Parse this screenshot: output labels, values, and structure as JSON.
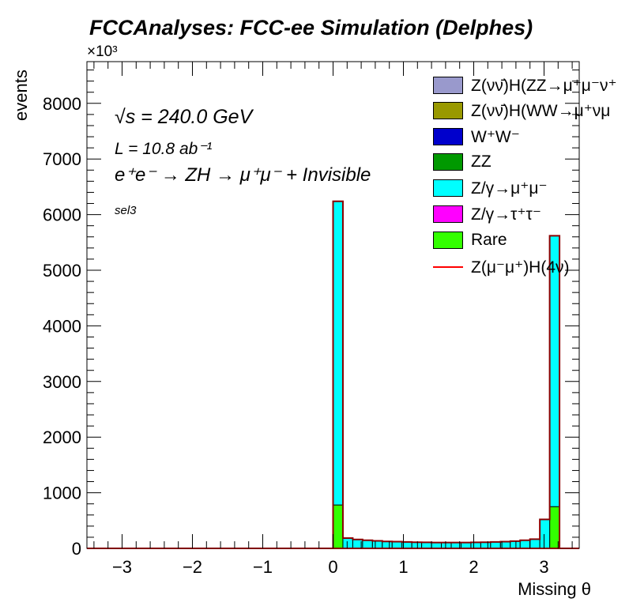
{
  "header": {
    "title": "FCCAnalyses: FCC-ee Simulation (Delphes)",
    "exponent": "×10³"
  },
  "annotations": {
    "energy": "√s = 240.0 GeV",
    "lumi": "L = 10.8 ab⁻¹",
    "process": "e⁺e⁻ → ZH → μ⁺μ⁻ + Invisible",
    "selection": "sel3"
  },
  "chart_data": {
    "type": "bar",
    "stacked": true,
    "xlabel": "Missing θ",
    "ylabel": "events",
    "xlim": [
      -3.5,
      3.5
    ],
    "ylim": [
      0,
      8750
    ],
    "y_scale_note": "×10³",
    "x_ticks": [
      -3,
      -2,
      -1,
      0,
      1,
      2,
      3
    ],
    "y_ticks": [
      0,
      1000,
      2000,
      3000,
      4000,
      5000,
      6000,
      7000,
      8000
    ],
    "bin_width": 0.14,
    "bin_lo": [
      0.0,
      0.14,
      0.28,
      0.42,
      0.56,
      0.7,
      0.84,
      0.98,
      1.12,
      1.26,
      1.4,
      1.54,
      1.68,
      1.82,
      1.96,
      2.1,
      2.24,
      2.38,
      2.52,
      2.66,
      2.8,
      2.94,
      3.08
    ],
    "series": [
      {
        "name": "Rare",
        "color": "#33ff00",
        "values": [
          780,
          0,
          0,
          0,
          0,
          0,
          0,
          0,
          0,
          0,
          0,
          0,
          0,
          0,
          0,
          0,
          0,
          0,
          0,
          0,
          0,
          0,
          750
        ]
      },
      {
        "name": "Z/γ→μ⁺μ⁻",
        "color": "#00ffff",
        "values": [
          5460,
          185,
          160,
          145,
          135,
          125,
          120,
          115,
          110,
          108,
          105,
          105,
          105,
          105,
          108,
          110,
          115,
          120,
          130,
          145,
          165,
          520,
          4870
        ]
      }
    ],
    "signal": {
      "name": "Z(μ⁻μ⁺)H(4ν)",
      "color": "#ff0000",
      "values": [
        0
      ]
    },
    "legend": {
      "position": "top-right",
      "entries": [
        {
          "label": "Z(νν̄)H(ZZ→μ⁺μ⁻ν⁺",
          "color": "#9999cc",
          "kind": "box"
        },
        {
          "label": "Z(νν̄)H(WW→μ⁺νμ",
          "color": "#999900",
          "kind": "box"
        },
        {
          "label": "W⁺W⁻",
          "color": "#0000cc",
          "kind": "box"
        },
        {
          "label": "ZZ",
          "color": "#009900",
          "kind": "box"
        },
        {
          "label": "Z/γ→μ⁺μ⁻",
          "color": "#00ffff",
          "kind": "box"
        },
        {
          "label": "Z/γ→τ⁺τ⁻",
          "color": "#ff00ff",
          "kind": "box"
        },
        {
          "label": "Rare",
          "color": "#33ff00",
          "kind": "box"
        },
        {
          "label": "Z(μ⁻μ⁺)H(4ν)",
          "color": "#ff0000",
          "kind": "line"
        }
      ]
    }
  }
}
